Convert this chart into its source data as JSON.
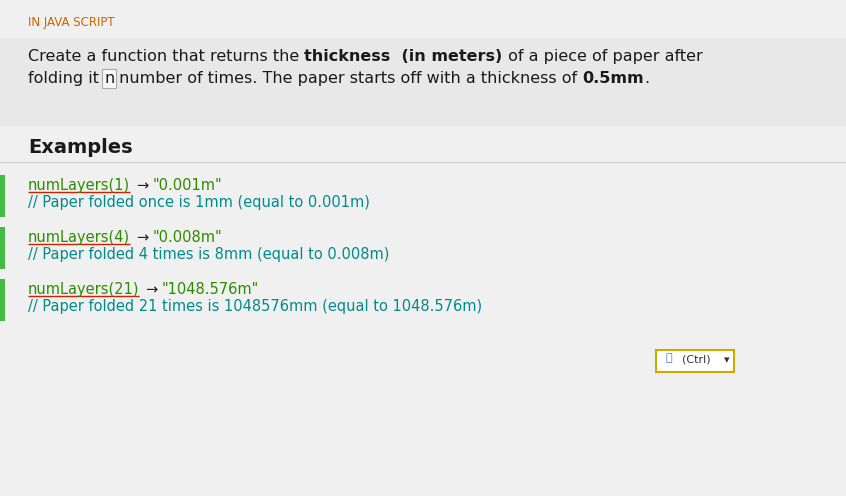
{
  "bg_color": "#f0f0f0",
  "desc_bg_color": "#e8e8e8",
  "header_text": "IN JAVA SCRIPT",
  "header_color": "#cc6600",
  "header_fontsize": 8.5,
  "desc_fontsize": 11.5,
  "examples_fontsize": 14,
  "code_fontsize": 10.5,
  "code_color": "#2e8b00",
  "comment_color": "#008b8b",
  "underline_color": "#cc2200",
  "arrow_color": "#222222",
  "text_color": "#1a1a1a",
  "left_bar_color": "#44bb44",
  "ctrl_box_color": "#ccaa00",
  "examples": [
    {
      "call": "numLayers(1)",
      "result": "\"0.001m\"",
      "comment": "// Paper folded once is 1mm (equal to 0.001m)"
    },
    {
      "call": "numLayers(4)",
      "result": "\"0.008m\"",
      "comment": "// Paper folded 4 times is 8mm (equal to 0.008m)"
    },
    {
      "call": "numLayers(21)",
      "result": "\"1048.576m\"",
      "comment": "// Paper folded 21 times is 1048576mm (equal to 1048.576m)"
    }
  ]
}
